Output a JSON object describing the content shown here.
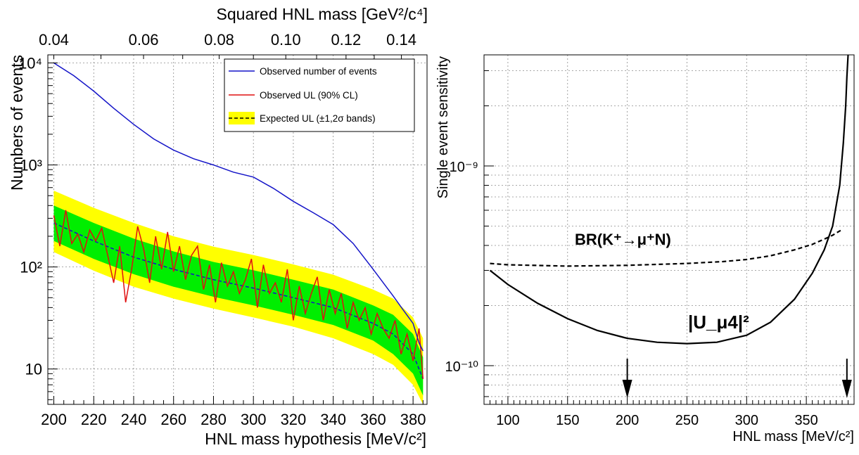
{
  "chart_data": [
    {
      "type": "line",
      "top_axis": {
        "label": "Squared HNL mass [GeV²/c⁴]",
        "ticks": [
          "0.04",
          "0.06",
          "0.08",
          "0.10",
          "0.12",
          "0.14"
        ]
      },
      "xlabel": "HNL mass hypothesis [MeV/c²]",
      "ylabel": "Numbers of events",
      "xlim": [
        197,
        387
      ],
      "ylim": [
        4.5,
        12000
      ],
      "y_scale": "log",
      "xticks": [
        "200",
        "220",
        "240",
        "260",
        "280",
        "300",
        "320",
        "340",
        "360",
        "380"
      ],
      "yticks": [
        "10",
        "10²",
        "10³",
        "10⁴"
      ],
      "grid": true,
      "legend_position": "top-right",
      "legend": [
        "Observed number of events",
        "Observed UL (90% CL)",
        "Expected UL (±1,2σ bands)"
      ],
      "colors": {
        "observed_events": "#1414c8",
        "observed_ul": "#e01010",
        "expected_ul": "#1414c8",
        "band_1sigma": "#00ee00",
        "band_2sigma": "#ffff00"
      },
      "series": [
        {
          "name": "Observed number of events",
          "x": [
            200,
            210,
            220,
            230,
            240,
            250,
            260,
            270,
            280,
            290,
            300,
            310,
            320,
            330,
            340,
            350,
            360,
            370,
            375,
            380,
            383,
            385
          ],
          "values": [
            10000,
            7500,
            5300,
            3600,
            2500,
            1800,
            1400,
            1150,
            1000,
            850,
            760,
            590,
            440,
            340,
            260,
            170,
            95,
            52,
            38,
            28,
            18,
            15
          ]
        },
        {
          "name": "Observed UL (90% CL)",
          "x": [
            200,
            203,
            206,
            209,
            212,
            215,
            218,
            221,
            224,
            227,
            230,
            233,
            236,
            239,
            242,
            245,
            248,
            251,
            254,
            257,
            260,
            263,
            266,
            269,
            272,
            275,
            278,
            281,
            284,
            287,
            290,
            293,
            296,
            299,
            302,
            305,
            308,
            311,
            314,
            317,
            320,
            323,
            326,
            329,
            332,
            335,
            338,
            341,
            344,
            347,
            350,
            353,
            356,
            359,
            362,
            365,
            368,
            371,
            374,
            377,
            380,
            383,
            385
          ],
          "values": [
            320,
            160,
            360,
            170,
            210,
            140,
            230,
            180,
            240,
            130,
            70,
            160,
            45,
            95,
            250,
            150,
            70,
            200,
            95,
            220,
            90,
            160,
            75,
            130,
            160,
            60,
            105,
            45,
            110,
            65,
            90,
            55,
            75,
            120,
            40,
            105,
            55,
            70,
            45,
            95,
            30,
            65,
            35,
            55,
            80,
            30,
            60,
            35,
            55,
            25,
            45,
            30,
            40,
            22,
            35,
            25,
            20,
            30,
            14,
            22,
            12,
            25,
            8
          ]
        },
        {
          "name": "Expected UL (±1,2σ bands)",
          "x": [
            200,
            220,
            240,
            260,
            280,
            300,
            320,
            340,
            360,
            370,
            380,
            385
          ],
          "values": [
            270,
            180,
            125,
            95,
            75,
            62,
            50,
            40,
            28,
            22,
            14,
            8
          ],
          "band_1sigma": {
            "lower": [
              180,
              120,
              85,
              64,
              51,
              42,
              34,
              27,
              19,
              14,
              9,
              5.5
            ],
            "upper": [
              400,
              270,
              190,
              142,
              112,
              93,
              75,
              60,
              42,
              34,
              22,
              13
            ]
          },
          "band_2sigma": {
            "lower": [
              140,
              92,
              64,
              49,
              39,
              32,
              26,
              20,
              14,
              11,
              7,
              4.5
            ],
            "upper": [
              560,
              380,
              270,
              200,
              158,
              131,
              106,
              84,
              60,
              49,
              32,
              20
            ]
          }
        }
      ]
    },
    {
      "type": "line",
      "xlabel": "HNL mass [MeV/c²]",
      "ylabel": "Single event sensitivity",
      "xlim": [
        80,
        390
      ],
      "ylim": [
        6.4e-11,
        3.6e-09
      ],
      "y_scale": "log",
      "xticks": [
        "100",
        "150",
        "200",
        "250",
        "300",
        "350"
      ],
      "yticks": [
        "10⁻¹⁰",
        "10⁻⁹"
      ],
      "grid": true,
      "series": [
        {
          "name": "BR(K⁺→μ⁺N)",
          "line_style": "dashed",
          "x": [
            85,
            100,
            150,
            200,
            250,
            280,
            300,
            320,
            340,
            355,
            365,
            372,
            376,
            380
          ],
          "values": [
            3.25e-10,
            3.2e-10,
            3.15e-10,
            3.18e-10,
            3.25e-10,
            3.32e-10,
            3.4e-10,
            3.55e-10,
            3.8e-10,
            4.05e-10,
            4.3e-10,
            4.5e-10,
            4.65e-10,
            4.8e-10
          ]
        },
        {
          "name": "|U_μ4|²",
          "line_style": "solid",
          "x": [
            85,
            100,
            125,
            150,
            175,
            200,
            225,
            250,
            275,
            300,
            320,
            340,
            355,
            365,
            372,
            378,
            381,
            383,
            384,
            385
          ],
          "values": [
            3e-10,
            2.55e-10,
            2.05e-10,
            1.72e-10,
            1.5e-10,
            1.37e-10,
            1.31e-10,
            1.29e-10,
            1.31e-10,
            1.42e-10,
            1.65e-10,
            2.15e-10,
            2.9e-10,
            3.8e-10,
            5e-10,
            8e-10,
            1.3e-09,
            2e-09,
            2.8e-09,
            3.6e-09
          ]
        }
      ],
      "annotations": [
        {
          "text": "BR(K⁺→μ⁺N)",
          "position": "upper-left"
        },
        {
          "text": "|U_μ4|²",
          "position": "center"
        }
      ],
      "arrows_at_x": [
        200,
        384
      ]
    }
  ]
}
